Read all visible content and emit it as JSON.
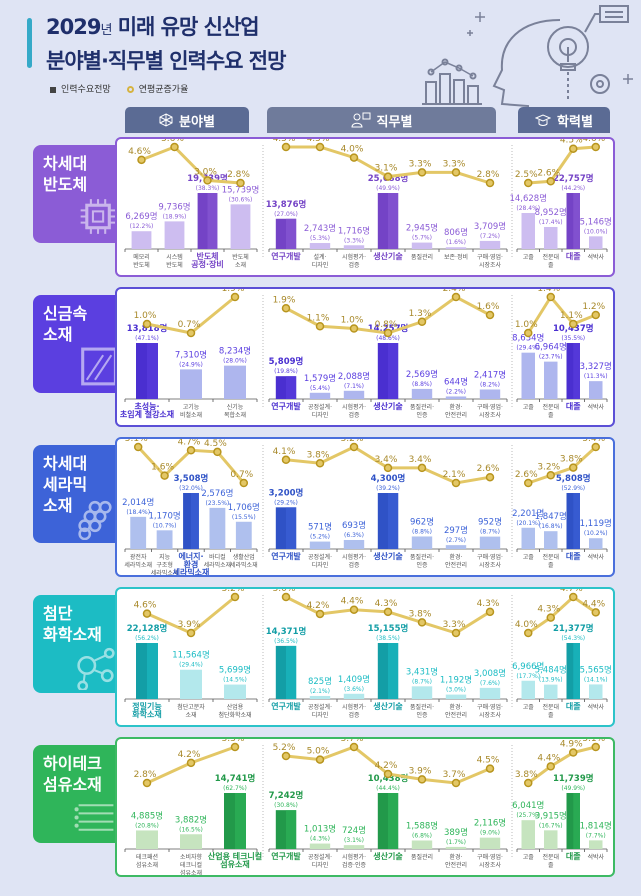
{
  "header": {
    "title_year": "2029",
    "title_year_suffix": "년",
    "title_line1_rest": " 미래 유망 신산업",
    "title_line2": "분야별·직무별 인력수요 전망",
    "legend_bar": "인력수요전망",
    "legend_line": "연평균증가율"
  },
  "tabs": {
    "field": "분야별",
    "job": "직무별",
    "education": "학력별"
  },
  "unit_suffix": "명",
  "chart_data": [
    {
      "type": "bar+line",
      "sector": "차세대 반도체",
      "sector_lines": [
        "차세대",
        "반도체"
      ],
      "icon": "chip-icon",
      "color": "#8b5cd6",
      "light_color": "#cdbdf0",
      "dark_color": "#7443c6",
      "border_color": "#8b5cd6",
      "field": {
        "categories": [
          [
            "메모리",
            "반도체"
          ],
          [
            "시스템",
            "반도체"
          ],
          [
            "반도체",
            "공정·장비"
          ],
          [
            "반도체",
            "소재"
          ]
        ],
        "values": [
          6269,
          9736,
          19739,
          15739
        ],
        "shares": [
          "12.2%",
          "18.9%",
          "38.3%",
          "30.6%"
        ],
        "growth": [
          4.6,
          5.6,
          3.0,
          2.8
        ],
        "highlight": 2
      },
      "job": {
        "categories": [
          [
            "연구개발"
          ],
          [
            "설계·",
            "디자인"
          ],
          [
            "시험평가·",
            "검증"
          ],
          [
            "생산기술"
          ],
          [
            "품질관리"
          ],
          [
            "보존·정비"
          ],
          [
            "구매·영업·",
            "시장조사"
          ]
        ],
        "values": [
          13876,
          2743,
          1716,
          25688,
          2945,
          806,
          3709
        ],
        "shares": [
          "27.0%",
          "5.3%",
          "3.3%",
          "49.9%",
          "5.7%",
          "1.6%",
          "7.2%"
        ],
        "growth": [
          4.5,
          4.5,
          4.0,
          3.1,
          3.3,
          3.3,
          2.8
        ],
        "highlight": [
          0,
          3
        ]
      },
      "education": {
        "categories": [
          [
            "고졸"
          ],
          [
            "전문대",
            "졸"
          ],
          [
            "대졸"
          ],
          [
            "석박사"
          ]
        ],
        "values": [
          14628,
          8952,
          22757,
          5146
        ],
        "shares": [
          "28.4%",
          "17.4%",
          "44.2%",
          "10.0%"
        ],
        "growth": [
          2.5,
          2.6,
          4.5,
          4.6
        ],
        "highlight": 2
      }
    },
    {
      "type": "bar+line",
      "sector": "신금속 소재",
      "sector_lines": [
        "신금속",
        "소재"
      ],
      "icon": "metal-plate-icon",
      "color": "#5b3fe0",
      "light_color": "#aeb6ee",
      "dark_color": "#4a2fd0",
      "border_color": "#5b4fd6",
      "field": {
        "categories": [
          [
            "초성능·",
            "초임계 철강소재"
          ],
          [
            "고기능",
            "비철소재"
          ],
          [
            "신기능",
            "복합소재"
          ]
        ],
        "values": [
          13818,
          7310,
          8234
        ],
        "shares": [
          "47.1%",
          "24.9%",
          "28.0%"
        ],
        "growth": [
          1.0,
          0.7,
          1.9
        ],
        "highlight": 0
      },
      "job": {
        "categories": [
          [
            "연구개발"
          ],
          [
            "공정설계·",
            "디자인"
          ],
          [
            "시험평가·",
            "검증"
          ],
          [
            "생산기술"
          ],
          [
            "품질관리·",
            "인증"
          ],
          [
            "환경·",
            "안전관리"
          ],
          [
            "구매·영업·",
            "시장조사"
          ]
        ],
        "values": [
          5809,
          1579,
          2088,
          14257,
          2569,
          644,
          2417
        ],
        "shares": [
          "19.8%",
          "5.4%",
          "7.1%",
          "48.6%",
          "8.8%",
          "2.2%",
          "8.2%"
        ],
        "growth": [
          1.9,
          1.1,
          1.0,
          0.8,
          1.3,
          2.4,
          1.6
        ],
        "highlight": [
          0,
          3
        ]
      },
      "education": {
        "categories": [
          [
            "고졸"
          ],
          [
            "전문대",
            "졸"
          ],
          [
            "대졸"
          ],
          [
            "석박사"
          ]
        ],
        "values": [
          8634,
          6964,
          10437,
          3327
        ],
        "shares": [
          "29.4%",
          "23.7%",
          "35.5%",
          "11.3%"
        ],
        "growth": [
          1.0,
          1.4,
          1.1,
          1.2
        ],
        "highlight": 2
      }
    },
    {
      "type": "bar+line",
      "sector": "차세대 세라믹 소재",
      "sector_lines": [
        "차세대",
        "세라믹",
        "소재"
      ],
      "icon": "ceramic-hex-icon",
      "color": "#3d63d8",
      "light_color": "#afc0ee",
      "dark_color": "#2f52c6",
      "border_color": "#4a6fdc",
      "field": {
        "categories": [
          [
            "광전자",
            "세라믹소재"
          ],
          [
            "지능",
            "구조형",
            "세라믹소재"
          ],
          [
            "에너지·",
            "환경",
            "세라믹소재"
          ],
          [
            "바디컬",
            "세라믹소재"
          ],
          [
            "생활산업",
            "세라믹소재"
          ]
        ],
        "values": [
          2014,
          1170,
          3508,
          2576,
          1706
        ],
        "shares": [
          "18.4%",
          "10.7%",
          "32.0%",
          "23.5%",
          "15.5%"
        ],
        "growth": [
          5.1,
          1.6,
          4.7,
          4.5,
          0.7
        ],
        "highlight": 2
      },
      "job": {
        "categories": [
          [
            "연구개발"
          ],
          [
            "공정설계·",
            "디자인"
          ],
          [
            "시험평가·",
            "검증"
          ],
          [
            "생산기술"
          ],
          [
            "품질관리·",
            "인증"
          ],
          [
            "환경·",
            "안전관리"
          ],
          [
            "구매·영업·",
            "시장조사"
          ]
        ],
        "values": [
          3200,
          571,
          693,
          4300,
          962,
          297,
          952
        ],
        "shares": [
          "29.2%",
          "5.2%",
          "6.3%",
          "39.2%",
          "8.8%",
          "2.7%",
          "8.7%"
        ],
        "growth": [
          4.1,
          3.8,
          5.2,
          3.4,
          3.4,
          2.1,
          2.6
        ],
        "highlight": [
          0,
          3
        ]
      },
      "education": {
        "categories": [
          [
            "고졸"
          ],
          [
            "전문대",
            "졸"
          ],
          [
            "대졸"
          ],
          [
            "석박사"
          ]
        ],
        "values": [
          2201,
          1847,
          5808,
          1119
        ],
        "shares": [
          "20.1%",
          "16.8%",
          "52.9%",
          "10.2%"
        ],
        "growth": [
          2.6,
          3.2,
          3.8,
          5.4
        ],
        "highlight": 2
      }
    },
    {
      "type": "bar+line",
      "sector": "첨단 화학소재",
      "sector_lines": [
        "첨단",
        "화학소재"
      ],
      "icon": "molecule-icon",
      "color": "#1cbcc4",
      "light_color": "#b3e8ec",
      "dark_color": "#139ea6",
      "border_color": "#2cc3c9",
      "field": {
        "categories": [
          [
            "정밀기능",
            "화학소재"
          ],
          [
            "첨단고분자",
            "소재"
          ],
          [
            "산업용",
            "첨단화학소재"
          ]
        ],
        "values": [
          22128,
          11564,
          5699
        ],
        "shares": [
          "56.2%",
          "29.4%",
          "14.5%"
        ],
        "growth": [
          4.6,
          3.9,
          5.2
        ],
        "highlight": 0
      },
      "job": {
        "categories": [
          [
            "연구개발"
          ],
          [
            "공정설계·",
            "디자인"
          ],
          [
            "시험평가·",
            "검증"
          ],
          [
            "생산기술"
          ],
          [
            "품질관리·",
            "인증"
          ],
          [
            "환경·",
            "안전관리"
          ],
          [
            "구매·영업·",
            "시장조사"
          ]
        ],
        "values": [
          14371,
          825,
          1409,
          15155,
          3431,
          1192,
          3008
        ],
        "shares": [
          "36.5%",
          "2.1%",
          "3.6%",
          "38.5%",
          "8.7%",
          "3.0%",
          "7.6%"
        ],
        "growth": [
          5.0,
          4.2,
          4.4,
          4.3,
          3.8,
          3.3,
          4.3
        ],
        "highlight": [
          0,
          3
        ]
      },
      "education": {
        "categories": [
          [
            "고졸"
          ],
          [
            "전문대",
            "졸"
          ],
          [
            "대졸"
          ],
          [
            "석박사"
          ]
        ],
        "values": [
          6966,
          5484,
          21377,
          5565
        ],
        "shares": [
          "17.7%",
          "13.9%",
          "54.3%",
          "14.1%"
        ],
        "growth": [
          4.0,
          4.3,
          4.7,
          4.4
        ],
        "highlight": 2
      }
    },
    {
      "type": "bar+line",
      "sector": "하이테크 섬유소재",
      "sector_lines": [
        "하이테크",
        "섬유소재"
      ],
      "icon": "fiber-lines-icon",
      "color": "#2fb55a",
      "light_color": "#c6e4bf",
      "dark_color": "#22994a",
      "border_color": "#3dba64",
      "field": {
        "categories": [
          [
            "테크패션",
            "섬유소재"
          ],
          [
            "소비자향",
            "테크니컬",
            "섬유소재"
          ],
          [
            "산업용 테크니컬",
            "섬유소재"
          ]
        ],
        "values": [
          4885,
          3882,
          14741
        ],
        "shares": [
          "20.8%",
          "16.5%",
          "62.7%"
        ],
        "growth": [
          2.8,
          4.2,
          5.3
        ],
        "highlight": 2
      },
      "job": {
        "categories": [
          [
            "연구개발"
          ],
          [
            "공정설계·",
            "디자인"
          ],
          [
            "시험평가·",
            "검증·인증"
          ],
          [
            "생산기술"
          ],
          [
            "품질관리"
          ],
          [
            "환경·",
            "안전관리"
          ],
          [
            "구매·영업·",
            "시장조사"
          ]
        ],
        "values": [
          7242,
          1013,
          724,
          10438,
          1588,
          389,
          2116
        ],
        "shares": [
          "30.8%",
          "4.3%",
          "3.1%",
          "44.4%",
          "6.8%",
          "1.7%",
          "9.0%"
        ],
        "growth": [
          5.2,
          5.0,
          5.7,
          4.2,
          3.9,
          3.7,
          4.5
        ],
        "highlight": [
          0,
          3
        ]
      },
      "education": {
        "categories": [
          [
            "고졸"
          ],
          [
            "전문대",
            "졸"
          ],
          [
            "대졸"
          ],
          [
            "석박사"
          ]
        ],
        "values": [
          6041,
          3915,
          11739,
          1814
        ],
        "shares": [
          "25.7%",
          "16.7%",
          "49.9%",
          "7.7%"
        ],
        "growth": [
          3.8,
          4.4,
          4.9,
          5.1
        ],
        "highlight": 2
      }
    }
  ]
}
